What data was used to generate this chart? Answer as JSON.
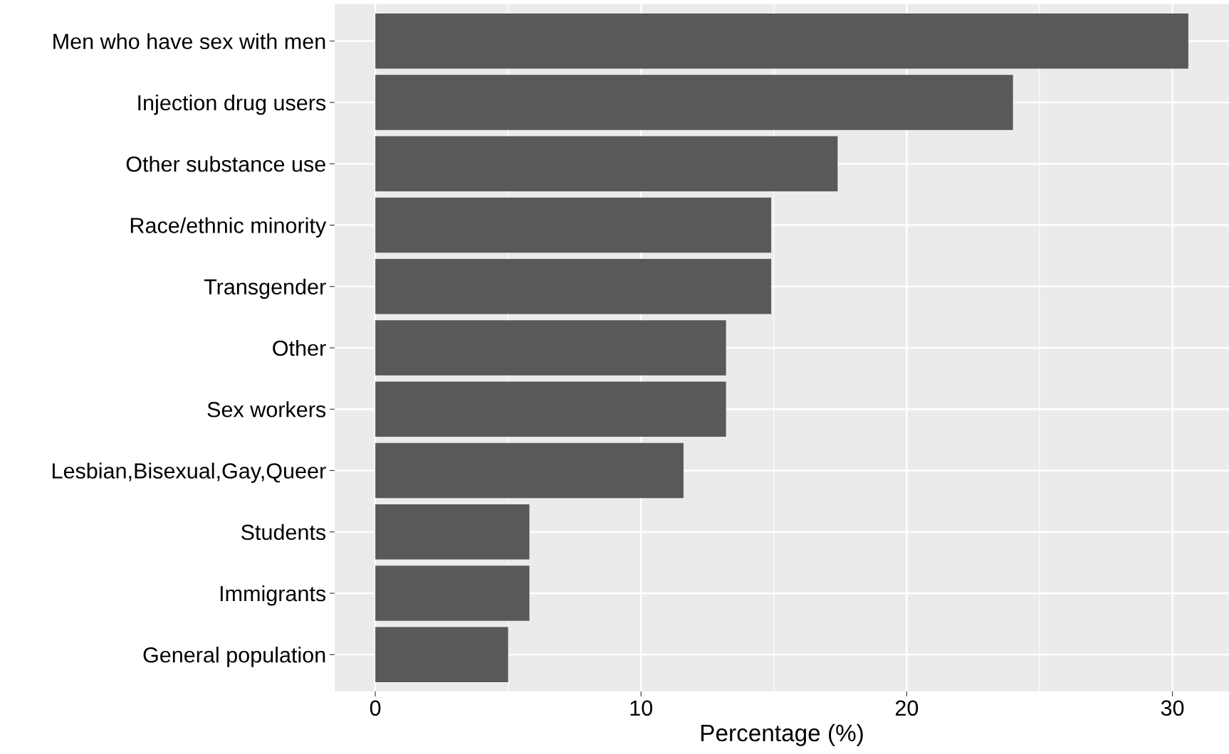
{
  "chart_data": {
    "type": "bar",
    "orientation": "horizontal",
    "xlabel": "Percentage (%)",
    "categories": [
      "Men who have sex with men",
      "Injection drug users",
      "Other substance use",
      "Race/ethnic minority",
      "Transgender",
      "Other",
      "Sex workers",
      "Lesbian,Bisexual,Gay,Queer",
      "Students",
      "Immigrants",
      "General population"
    ],
    "values": [
      30.6,
      24.0,
      17.4,
      14.9,
      14.9,
      13.2,
      13.2,
      11.6,
      5.8,
      5.8,
      5.0
    ],
    "color": "#595959",
    "xlim": [
      -1.53,
      32.13
    ],
    "xticks": [
      0,
      10,
      20,
      30
    ],
    "grid": true
  }
}
